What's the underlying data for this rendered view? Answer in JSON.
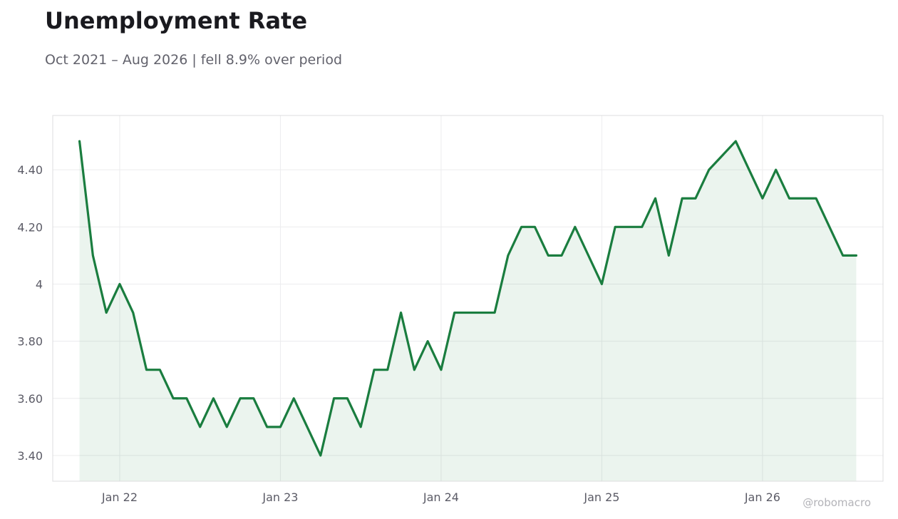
{
  "title": "Unemployment Rate",
  "subtitle": "Oct 2021 – Aug 2026 | fell 8.9% over period",
  "watermark": "@robomacro",
  "colors": {
    "line": "#1a7d3f",
    "fill": "#1a7d3f",
    "grid": "#ececee",
    "frame": "#dcdcdf"
  },
  "chart_data": {
    "type": "area",
    "x_start": "2021-10",
    "x": [
      "2021-10",
      "2021-11",
      "2021-12",
      "2022-01",
      "2022-02",
      "2022-03",
      "2022-04",
      "2022-05",
      "2022-06",
      "2022-07",
      "2022-08",
      "2022-09",
      "2022-10",
      "2022-11",
      "2022-12",
      "2023-01",
      "2023-02",
      "2023-03",
      "2023-04",
      "2023-05",
      "2023-06",
      "2023-07",
      "2023-08",
      "2023-09",
      "2023-10",
      "2023-11",
      "2023-12",
      "2024-01",
      "2024-02",
      "2024-03",
      "2024-04",
      "2024-05",
      "2024-06",
      "2024-07",
      "2024-08",
      "2024-09",
      "2024-10",
      "2024-11",
      "2024-12",
      "2025-01",
      "2025-02",
      "2025-03",
      "2025-04",
      "2025-05",
      "2025-06",
      "2025-07",
      "2025-08",
      "2025-09",
      "2025-10",
      "2025-11",
      "2025-12",
      "2026-01",
      "2026-02",
      "2026-03",
      "2026-04",
      "2026-05",
      "2026-06",
      "2026-07",
      "2026-08"
    ],
    "values": [
      4.5,
      4.1,
      3.9,
      4.0,
      3.9,
      3.7,
      3.7,
      3.6,
      3.6,
      3.5,
      3.6,
      3.5,
      3.6,
      3.6,
      3.5,
      3.5,
      3.6,
      3.5,
      3.4,
      3.6,
      3.6,
      3.5,
      3.7,
      3.7,
      3.9,
      3.7,
      3.8,
      3.7,
      3.9,
      3.9,
      3.9,
      3.9,
      4.1,
      4.2,
      4.2,
      4.1,
      4.1,
      4.2,
      4.1,
      4.0,
      4.2,
      4.2,
      4.2,
      4.3,
      4.1,
      4.3,
      4.3,
      4.4,
      4.45,
      4.5,
      4.4,
      4.3,
      4.4,
      4.3,
      4.3,
      4.3,
      4.2,
      4.1,
      4.1
    ],
    "x_ticks": [
      {
        "date": "2022-01",
        "label": "Jan 22"
      },
      {
        "date": "2023-01",
        "label": "Jan 23"
      },
      {
        "date": "2024-01",
        "label": "Jan 24"
      },
      {
        "date": "2025-01",
        "label": "Jan 25"
      },
      {
        "date": "2026-01",
        "label": "Jan 26"
      }
    ],
    "y_ticks": [
      {
        "value": 3.4,
        "label": "3.40"
      },
      {
        "value": 3.6,
        "label": "3.60"
      },
      {
        "value": 3.8,
        "label": "3.80"
      },
      {
        "value": 4.0,
        "label": "4"
      },
      {
        "value": 4.2,
        "label": "4.20"
      },
      {
        "value": 4.4,
        "label": "4.40"
      }
    ],
    "ylim": [
      3.31,
      4.59
    ],
    "xlim": [
      "2021-08",
      "2026-10"
    ],
    "grid": true,
    "xlabel": "",
    "ylabel": ""
  }
}
